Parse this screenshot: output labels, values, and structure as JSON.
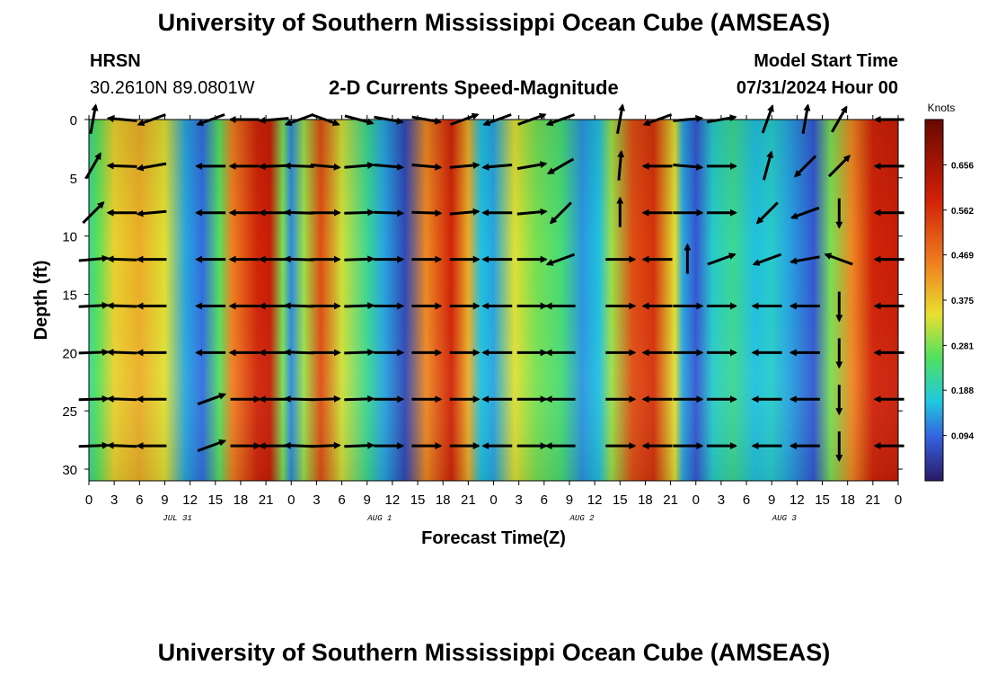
{
  "header": {
    "title": "University of Southern Mississippi Ocean Cube (AMSEAS)",
    "station": "HRSN",
    "coords": "30.2610N  89.0801W",
    "subtitle": "2-D Currents Speed-Magnitude",
    "model_start_label": "Model Start Time",
    "model_start_value": "07/31/2024 Hour 00",
    "footer_title": "University of Southern Mississippi Ocean Cube (AMSEAS)"
  },
  "colors": {
    "low": "#2a1a66",
    "blue": "#3560e0",
    "cyan": "#20c8e0",
    "green": "#50e060",
    "yellow": "#e8e030",
    "orange": "#f08020",
    "red": "#d02008",
    "darkred": "#6a0800",
    "arrow": "#000000"
  },
  "chart_data": {
    "type": "heatmap",
    "xlabel": "Forecast Time(Z)",
    "ylabel": "Depth (ft)",
    "colorbar_label": "Knots",
    "colorbar_ticks": [
      "0.656",
      "0.562",
      "0.469",
      "0.375",
      "0.281",
      "0.188",
      "0.094"
    ],
    "colorbar_range": [
      0,
      0.75
    ],
    "x_range_hours": [
      0,
      96
    ],
    "x_tick_labels": [
      "0",
      "3",
      "6",
      "9",
      "12",
      "15",
      "18",
      "21",
      "0",
      "3",
      "6",
      "9",
      "12",
      "15",
      "18",
      "21",
      "0",
      "3",
      "6",
      "9",
      "12",
      "15",
      "18",
      "21",
      "0",
      "3",
      "6",
      "9",
      "12",
      "15",
      "18",
      "21",
      "0"
    ],
    "date_labels": [
      {
        "label": "JUL 31",
        "hour": 10.5
      },
      {
        "label": "AUG 1",
        "hour": 34.5
      },
      {
        "label": "AUG 2",
        "hour": 58.5
      },
      {
        "label": "AUG 3",
        "hour": 82.5
      }
    ],
    "y_range_ft": [
      0,
      31
    ],
    "y_ticks": [
      "0",
      "5",
      "10",
      "15",
      "20",
      "25",
      "30"
    ],
    "depths_ft": [
      0,
      4,
      8,
      12,
      16,
      20,
      24,
      28
    ],
    "column_profiles": [
      {
        "hour": 0,
        "speed": 0.22
      },
      {
        "hour": 1,
        "speed": 0.26
      },
      {
        "hour": 3,
        "speed": 0.36
      },
      {
        "hour": 6,
        "speed": 0.4
      },
      {
        "hour": 9,
        "speed": 0.34
      },
      {
        "hour": 11.5,
        "speed": 0.14
      },
      {
        "hour": 13.5,
        "speed": 0.1
      },
      {
        "hour": 15.5,
        "speed": 0.26
      },
      {
        "hour": 17,
        "speed": 0.45
      },
      {
        "hour": 20,
        "speed": 0.58
      },
      {
        "hour": 21.5,
        "speed": 0.6
      },
      {
        "hour": 23,
        "speed": 0.28
      },
      {
        "hour": 24,
        "speed": 0.12
      },
      {
        "hour": 25.5,
        "speed": 0.3
      },
      {
        "hour": 27.5,
        "speed": 0.52
      },
      {
        "hour": 30,
        "speed": 0.33
      },
      {
        "hour": 33,
        "speed": 0.22
      },
      {
        "hour": 35,
        "speed": 0.14
      },
      {
        "hour": 37.5,
        "speed": 0.06
      },
      {
        "hour": 40,
        "speed": 0.44
      },
      {
        "hour": 43,
        "speed": 0.58
      },
      {
        "hour": 45,
        "speed": 0.4
      },
      {
        "hour": 46.5,
        "speed": 0.16
      },
      {
        "hour": 48,
        "speed": 0.14
      },
      {
        "hour": 50.5,
        "speed": 0.34
      },
      {
        "hour": 53,
        "speed": 0.28
      },
      {
        "hour": 56,
        "speed": 0.24
      },
      {
        "hour": 58.5,
        "speed": 0.13
      },
      {
        "hour": 60.5,
        "speed": 0.16
      },
      {
        "hour": 62,
        "speed": 0.3
      },
      {
        "hour": 64.5,
        "speed": 0.52
      },
      {
        "hour": 67,
        "speed": 0.56
      },
      {
        "hour": 69.5,
        "speed": 0.34
      },
      {
        "hour": 70.5,
        "speed": 0.14
      },
      {
        "hour": 72,
        "speed": 0.08
      },
      {
        "hour": 74,
        "speed": 0.18
      },
      {
        "hour": 76.5,
        "speed": 0.22
      },
      {
        "hour": 79,
        "speed": 0.16
      },
      {
        "hour": 81,
        "speed": 0.18
      },
      {
        "hour": 83,
        "speed": 0.14
      },
      {
        "hour": 86,
        "speed": 0.08
      },
      {
        "hour": 88,
        "speed": 0.28
      },
      {
        "hour": 90.5,
        "speed": 0.44
      },
      {
        "hour": 93,
        "speed": 0.58
      },
      {
        "hour": 96,
        "speed": 0.6
      }
    ],
    "arrow_columns": [
      {
        "hour": 0.5,
        "dirs_deg": [
          80,
          60,
          45,
          5,
          3,
          2,
          2,
          2
        ]
      },
      {
        "hour": 4,
        "dirs_deg": [
          175,
          178,
          180,
          178,
          178,
          178,
          178,
          178
        ]
      },
      {
        "hour": 7.5,
        "dirs_deg": [
          200,
          190,
          185,
          180,
          180,
          180,
          180,
          180
        ]
      },
      {
        "hour": 14.5,
        "dirs_deg": [
          200,
          180,
          180,
          180,
          180,
          180,
          20,
          20
        ]
      },
      {
        "hour": 18.5,
        "dirs_deg": [
          180,
          180,
          180,
          180,
          180,
          180,
          0,
          0
        ]
      },
      {
        "hour": 22,
        "dirs_deg": [
          185,
          182,
          180,
          180,
          180,
          180,
          180,
          180
        ]
      },
      {
        "hour": 25,
        "dirs_deg": [
          200,
          178,
          178,
          178,
          178,
          178,
          178,
          178
        ]
      },
      {
        "hour": 28,
        "dirs_deg": [
          340,
          355,
          0,
          0,
          0,
          0,
          2,
          2
        ]
      },
      {
        "hour": 32,
        "dirs_deg": [
          345,
          5,
          2,
          2,
          2,
          2,
          2,
          2
        ]
      },
      {
        "hour": 35.5,
        "dirs_deg": [
          350,
          355,
          358,
          0,
          0,
          0,
          0,
          0
        ]
      },
      {
        "hour": 40,
        "dirs_deg": [
          350,
          355,
          358,
          0,
          0,
          0,
          0,
          0
        ]
      },
      {
        "hour": 44.5,
        "dirs_deg": [
          20,
          5,
          5,
          0,
          0,
          0,
          0,
          0
        ]
      },
      {
        "hour": 48.5,
        "dirs_deg": [
          200,
          185,
          180,
          180,
          180,
          180,
          180,
          180
        ]
      },
      {
        "hour": 52.5,
        "dirs_deg": [
          20,
          10,
          5,
          0,
          0,
          0,
          0,
          0
        ]
      },
      {
        "hour": 56,
        "dirs_deg": [
          200,
          210,
          225,
          200,
          180,
          180,
          180,
          180
        ]
      },
      {
        "hour": 63,
        "dirs_deg": [
          80,
          85,
          90,
          0,
          0,
          0,
          0,
          0
        ]
      },
      {
        "hour": 67.5,
        "dirs_deg": [
          200,
          180,
          180,
          180,
          180,
          180,
          180,
          180
        ]
      },
      {
        "hour": 71,
        "dirs_deg": [
          5,
          355,
          0,
          90,
          0,
          0,
          0,
          0
        ]
      },
      {
        "hour": 75,
        "dirs_deg": [
          10,
          0,
          0,
          20,
          0,
          0,
          0,
          0
        ]
      },
      {
        "hour": 80.5,
        "dirs_deg": [
          70,
          75,
          225,
          200,
          180,
          180,
          180,
          180
        ]
      },
      {
        "hour": 85,
        "dirs_deg": [
          80,
          225,
          200,
          190,
          180,
          180,
          180,
          180
        ]
      },
      {
        "hour": 89,
        "dirs_deg": [
          60,
          45,
          270,
          160,
          270,
          270,
          270,
          270
        ]
      },
      {
        "hour": 95,
        "dirs_deg": [
          180,
          180,
          180,
          180,
          180,
          180,
          180,
          180
        ]
      }
    ]
  }
}
